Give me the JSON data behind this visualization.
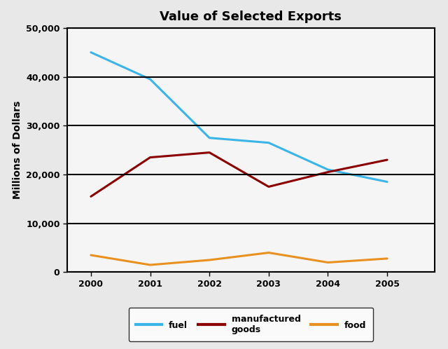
{
  "title": "Value of Selected Exports",
  "ylabel": "Millions of Dollars",
  "years": [
    2000,
    2001,
    2002,
    2003,
    2004,
    2005
  ],
  "series": {
    "fuel": {
      "values": [
        45000,
        39500,
        27500,
        26500,
        21000,
        18500
      ],
      "color": "#3BB5E8"
    },
    "manufactured goods": {
      "values": [
        15500,
        23500,
        24500,
        17500,
        20500,
        23000
      ],
      "color": "#8B0000"
    },
    "food": {
      "values": [
        3500,
        1500,
        2500,
        4000,
        2000,
        2800
      ],
      "color": "#E89020"
    }
  },
  "ylim": [
    0,
    50000
  ],
  "yticks": [
    0,
    10000,
    20000,
    30000,
    40000,
    50000
  ],
  "ytick_labels": [
    "0",
    "10,000",
    "20,000",
    "30,000",
    "40,000",
    "50,000"
  ],
  "legend_labels": [
    "fuel",
    "manufactured\ngoods",
    "food"
  ],
  "legend_colors": [
    "#3BB5E8",
    "#8B0000",
    "#E89020"
  ],
  "plot_bg_color": "#F5F5F5",
  "fig_bg_color": "#E8E8E8",
  "grid_color": "#000000",
  "title_fontsize": 13,
  "axis_label_fontsize": 10,
  "tick_fontsize": 9,
  "line_width": 2.2
}
